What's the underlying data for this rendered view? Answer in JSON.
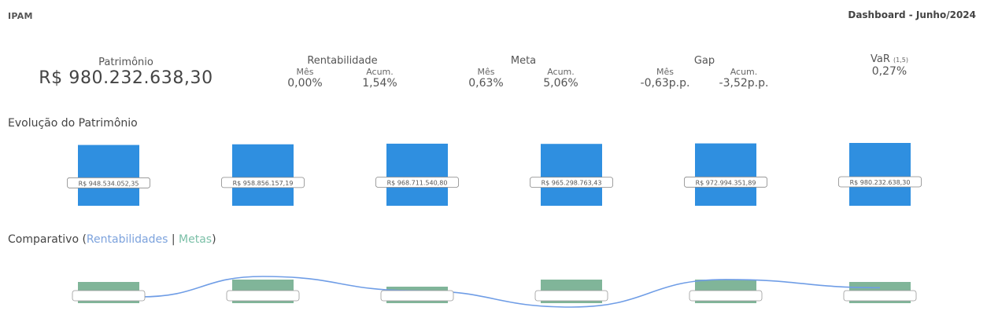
{
  "header": {
    "org": "IPAM",
    "title": "Dashboard - Junho/2024"
  },
  "kpis": {
    "patrimonio": {
      "label": "Patrimônio",
      "value": "R$ 980.232.638,30"
    },
    "rentabilidade": {
      "label": "Rentabilidade",
      "mes_label": "Mês",
      "acum_label": "Acum.",
      "mes": "0,00%",
      "acum": "1,54%"
    },
    "meta": {
      "label": "Meta",
      "mes_label": "Mês",
      "acum_label": "Acum.",
      "mes": "0,63%",
      "acum": "5,06%"
    },
    "gap": {
      "label": "Gap",
      "mes_label": "Mês",
      "acum_label": "Acum.",
      "mes": "-0,63p.p.",
      "acum": "-3,52p.p."
    },
    "var": {
      "label": "VaR",
      "sub": "(1,5)",
      "value": "0,27%"
    }
  },
  "sections": {
    "evolucao": "Evolução do Patrimônio",
    "comparativo_prefix": "Comparativo (",
    "comparativo_rent": "Rentabilidades",
    "comparativo_sep": " | ",
    "comparativo_meta": "Metas",
    "comparativo_suffix": ")"
  },
  "chart_data": [
    {
      "type": "bar",
      "title": "Evolução do Patrimônio",
      "categories": [
        "",
        "",
        "",
        "",
        "",
        ""
      ],
      "values": [
        948534052.35,
        958856157.19,
        968711540.8,
        965298763.43,
        972994351.89,
        980232638.3
      ],
      "data_labels": [
        "R$ 948.534.052,35",
        "R$ 958.856.157,19",
        "R$ 968.711.540,80",
        "R$ 965.298.763,43",
        "R$ 972.994.351,89",
        "R$ 980.232.638,30"
      ],
      "color": "#2f8fe0",
      "ylim": [
        0,
        980232638.3
      ]
    },
    {
      "type": "bar",
      "title": "Comparativo",
      "categories": [
        "",
        "",
        "",
        "",
        "",
        ""
      ],
      "series": [
        {
          "name": "Rentabilidades",
          "type": "line",
          "color": "#6f9de6",
          "values": [
            0.0,
            1.0,
            0.3,
            -0.5,
            0.85,
            0.45
          ]
        },
        {
          "name": "Metas",
          "type": "bar",
          "color": "#6aa887",
          "values": [
            0.9,
            1.0,
            0.7,
            1.0,
            1.0,
            0.9
          ]
        }
      ],
      "data_labels": [
        "",
        "",
        "",
        "",
        "",
        ""
      ]
    }
  ]
}
